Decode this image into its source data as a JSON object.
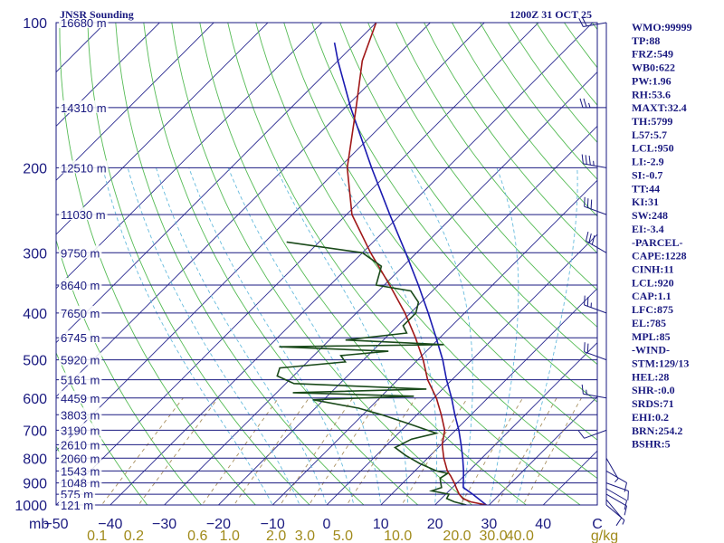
{
  "header": {
    "title": "JNSR Sounding",
    "datetime": "1200Z 31 OCT 25"
  },
  "chart_data": {
    "type": "line",
    "title": "JNSR Sounding",
    "pressure_unit": "mb",
    "temperature_unit": "C",
    "mixing_ratio_unit": "g/kg",
    "p_range": [
      1000,
      100
    ],
    "t_range_at_1000mb": [
      -50,
      50
    ],
    "pressure_levels": [
      100,
      200,
      300,
      400,
      500,
      600,
      700,
      800,
      900,
      1000
    ],
    "height_labels": [
      {
        "p": 100,
        "label": "16680 m"
      },
      {
        "p": 150,
        "label": "14310 m"
      },
      {
        "p": 200,
        "label": "12510 m"
      },
      {
        "p": 250,
        "label": "11030 m"
      },
      {
        "p": 300,
        "label": "9750 m"
      },
      {
        "p": 350,
        "label": "8640 m"
      },
      {
        "p": 400,
        "label": "7650 m"
      },
      {
        "p": 450,
        "label": "6745 m"
      },
      {
        "p": 500,
        "label": "5920 m"
      },
      {
        "p": 550,
        "label": "5161 m"
      },
      {
        "p": 600,
        "label": "4459 m"
      },
      {
        "p": 650,
        "label": "3803 m"
      },
      {
        "p": 700,
        "label": "3190 m"
      },
      {
        "p": 750,
        "label": "2610 m"
      },
      {
        "p": 800,
        "label": "2060 m"
      },
      {
        "p": 850,
        "label": "1543 m"
      },
      {
        "p": 900,
        "label": "1048 m"
      },
      {
        "p": 950,
        "label": "575 m"
      },
      {
        "p": 1000,
        "label": "121 m"
      }
    ],
    "temperature_ticks": [
      "−50",
      "−40",
      "−30",
      "−20",
      "−10",
      "0",
      "10",
      "20",
      "30",
      "40",
      "C"
    ],
    "mixing_ratio_ticks": [
      "0.1",
      "0.2",
      "0.6",
      "1.0",
      "2.0",
      "3.0",
      "5.0",
      "10.0",
      "20.0",
      "30.0",
      "40.0",
      "g/kg"
    ],
    "mixing_ratio_values": [
      0.1,
      0.2,
      0.6,
      1.0,
      2.0,
      3.0,
      5.0,
      10.0,
      20.0,
      30.0,
      40.0
    ],
    "dry_adiabats_theta_K": [
      230,
      240,
      250,
      260,
      270,
      280,
      290,
      300,
      310,
      320,
      330,
      340,
      350,
      360,
      370,
      380,
      390,
      400,
      410,
      420,
      430,
      440,
      450,
      460,
      470,
      480,
      490,
      500
    ],
    "moist_adiabats_thetaw_C": [
      -10,
      -5,
      0,
      5,
      10,
      15,
      20,
      25,
      30,
      35
    ],
    "temperature_profile": [
      {
        "p": 1000,
        "t": 29.5
      },
      {
        "p": 985,
        "t": 26.0
      },
      {
        "p": 970,
        "t": 24.0
      },
      {
        "p": 950,
        "t": 22.5
      },
      {
        "p": 925,
        "t": 21.0
      },
      {
        "p": 900,
        "t": 19.5
      },
      {
        "p": 870,
        "t": 17.5
      },
      {
        "p": 850,
        "t": 16.0
      },
      {
        "p": 800,
        "t": 13.0
      },
      {
        "p": 750,
        "t": 10.2
      },
      {
        "p": 700,
        "t": 8.0
      },
      {
        "p": 650,
        "t": 4.5
      },
      {
        "p": 600,
        "t": 0.5
      },
      {
        "p": 550,
        "t": -4.5
      },
      {
        "p": 500,
        "t": -9.0
      },
      {
        "p": 450,
        "t": -14.5
      },
      {
        "p": 400,
        "t": -21.0
      },
      {
        "p": 350,
        "t": -29.0
      },
      {
        "p": 300,
        "t": -38.5
      },
      {
        "p": 250,
        "t": -49.0
      },
      {
        "p": 200,
        "t": -58.5
      },
      {
        "p": 150,
        "t": -68.0
      },
      {
        "p": 120,
        "t": -75.5
      },
      {
        "p": 100,
        "t": -80.0
      }
    ],
    "dewpoint_profile": [
      {
        "p": 1000,
        "t": 25.8
      },
      {
        "p": 985,
        "t": 23.0
      },
      {
        "p": 970,
        "t": 21.0
      },
      {
        "p": 950,
        "t": 20.6
      },
      {
        "p": 935,
        "t": 16.8
      },
      {
        "p": 920,
        "t": 18.0
      },
      {
        "p": 900,
        "t": 17.0
      },
      {
        "p": 880,
        "t": 16.0
      },
      {
        "p": 860,
        "t": 16.5
      },
      {
        "p": 850,
        "t": 14.0
      },
      {
        "p": 820,
        "t": 9.5
      },
      {
        "p": 790,
        "t": 5.5
      },
      {
        "p": 760,
        "t": 2.0
      },
      {
        "p": 730,
        "t": 3.5
      },
      {
        "p": 710,
        "t": 7.0
      },
      {
        "p": 680,
        "t": 0.5
      },
      {
        "p": 650,
        "t": -6.5
      },
      {
        "p": 630,
        "t": -12.0
      },
      {
        "p": 605,
        "t": -22.0
      },
      {
        "p": 595,
        "t": -4.0
      },
      {
        "p": 585,
        "t": -27.0
      },
      {
        "p": 575,
        "t": -3.0
      },
      {
        "p": 560,
        "t": -28.5
      },
      {
        "p": 540,
        "t": -33.0
      },
      {
        "p": 520,
        "t": -34.0
      },
      {
        "p": 505,
        "t": -23.0
      },
      {
        "p": 490,
        "t": -25.0
      },
      {
        "p": 480,
        "t": -17.0
      },
      {
        "p": 470,
        "t": -38.0
      },
      {
        "p": 465,
        "t": -8.0
      },
      {
        "p": 455,
        "t": -27.0
      },
      {
        "p": 440,
        "t": -17.0
      },
      {
        "p": 425,
        "t": -19.0
      },
      {
        "p": 400,
        "t": -19.0
      },
      {
        "p": 380,
        "t": -20.5
      },
      {
        "p": 360,
        "t": -24.0
      },
      {
        "p": 350,
        "t": -31.5
      },
      {
        "p": 320,
        "t": -34.0
      },
      {
        "p": 300,
        "t": -40.0
      },
      {
        "p": 285,
        "t": -56.0
      }
    ],
    "parcel_profile": [
      {
        "p": 1000,
        "t": 29.5
      },
      {
        "p": 950,
        "t": 25.0
      },
      {
        "p": 920,
        "t": 22.0
      },
      {
        "p": 850,
        "t": 19.0
      },
      {
        "p": 800,
        "t": 16.5
      },
      {
        "p": 750,
        "t": 13.7
      },
      {
        "p": 700,
        "t": 10.6
      },
      {
        "p": 650,
        "t": 7.0
      },
      {
        "p": 600,
        "t": 3.3
      },
      {
        "p": 550,
        "t": -1.0
      },
      {
        "p": 500,
        "t": -5.4
      },
      {
        "p": 450,
        "t": -10.7
      },
      {
        "p": 400,
        "t": -16.7
      },
      {
        "p": 350,
        "t": -23.7
      },
      {
        "p": 300,
        "t": -32.0
      },
      {
        "p": 250,
        "t": -42.0
      },
      {
        "p": 200,
        "t": -54.0
      },
      {
        "p": 150,
        "t": -69.0
      },
      {
        "p": 120,
        "t": -80.0
      },
      {
        "p": 110,
        "t": -84.0
      }
    ],
    "wind_barbs": [
      {
        "p": 1000,
        "dir": 130,
        "spd": 5
      },
      {
        "p": 975,
        "dir": 140,
        "spd": 10
      },
      {
        "p": 950,
        "dir": 120,
        "spd": 10
      },
      {
        "p": 925,
        "dir": 120,
        "spd": 10
      },
      {
        "p": 900,
        "dir": 110,
        "spd": 10
      },
      {
        "p": 850,
        "dir": 120,
        "spd": 10
      },
      {
        "p": 800,
        "dir": 150,
        "spd": 5
      },
      {
        "p": 700,
        "dir": 250,
        "spd": 10
      },
      {
        "p": 600,
        "dir": 280,
        "spd": 15
      },
      {
        "p": 500,
        "dir": 290,
        "spd": 20
      },
      {
        "p": 400,
        "dir": 290,
        "spd": 25
      },
      {
        "p": 300,
        "dir": 300,
        "spd": 30
      },
      {
        "p": 250,
        "dir": 290,
        "spd": 30
      },
      {
        "p": 200,
        "dir": 280,
        "spd": 35
      },
      {
        "p": 150,
        "dir": 270,
        "spd": 25
      },
      {
        "p": 100,
        "dir": 260,
        "spd": 20
      }
    ]
  },
  "indices": [
    "WMO:99999",
    "TP:88",
    "FRZ:549",
    "WB0:622",
    "PW:1.96",
    "RH:53.6",
    "MAXT:32.4",
    "TH:5799",
    "L57:5.7",
    "LCL:950",
    "LI:-2.9",
    "SI:-0.7",
    "TT:44",
    "KI:31",
    "SW:248",
    "EI:-3.4",
    "-PARCEL-",
    "CAPE:1228",
    "CINH:11",
    "LCL:920",
    "CAP:1.1",
    "LFC:875",
    "EL:785",
    "MPL:85",
    "-WIND-",
    "STM:129/13",
    "HEL:28",
    "SHR-:0.0",
    "SRDS:71",
    "EHI:0.2",
    "BRN:254.2",
    "BSHR:5"
  ],
  "colors": {
    "frame": "#1a1a80",
    "isobar": "#1a1a80",
    "isotherm": "#2a2a90",
    "dry_adiabat": "#55bb55",
    "moist_adiabat": "#66bbdd",
    "mixing_ratio": "#a89060",
    "temperature": "#a01818",
    "dewpoint": "#1a4a1a",
    "parcel": "#1a1ab0",
    "barb": "#1a1a80",
    "mixing_label": "#a08a1a"
  }
}
